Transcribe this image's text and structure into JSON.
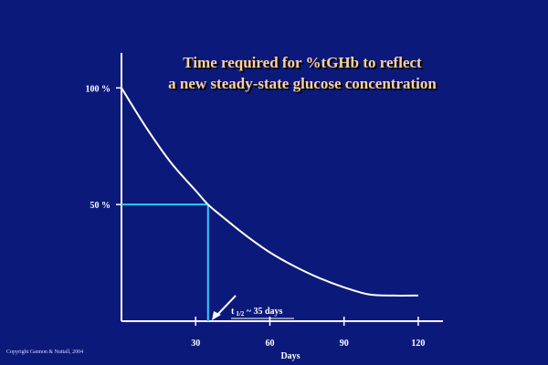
{
  "chart_data": {
    "type": "line",
    "title_lines": [
      "Time required for %tGHb to reflect",
      "a new steady-state glucose concentration"
    ],
    "xlabel": "Days",
    "ylabel": "",
    "xlim": [
      0,
      130
    ],
    "ylim": [
      0,
      115
    ],
    "x_ticks": [
      30,
      60,
      90,
      120
    ],
    "y_ticks": [
      {
        "value": 100,
        "label": "100 %"
      },
      {
        "value": 50,
        "label": "50 %"
      }
    ],
    "grid": false,
    "legend": "none",
    "series": [
      {
        "x": [
          0,
          10,
          20,
          30,
          35,
          40,
          50,
          60,
          70,
          80,
          90,
          100,
          110,
          120
        ],
        "y": [
          100,
          83,
          68,
          56,
          50,
          45.5,
          37,
          29.5,
          23.5,
          18.5,
          14.5,
          11.5,
          11,
          11
        ]
      }
    ],
    "half_life": {
      "x": 35,
      "y": 50
    },
    "annotation": {
      "main": "t",
      "sub": "1/2",
      "rest": " ~ 35 days"
    },
    "colors": {
      "background": "#0b1a7a",
      "axes": "#ffffff",
      "curve": "#ffffff",
      "guide": "#33ccff",
      "title": "#ffd0a0"
    }
  },
  "footer": {
    "copyright": "Copyright Gannon & Nuttall, 2004"
  }
}
